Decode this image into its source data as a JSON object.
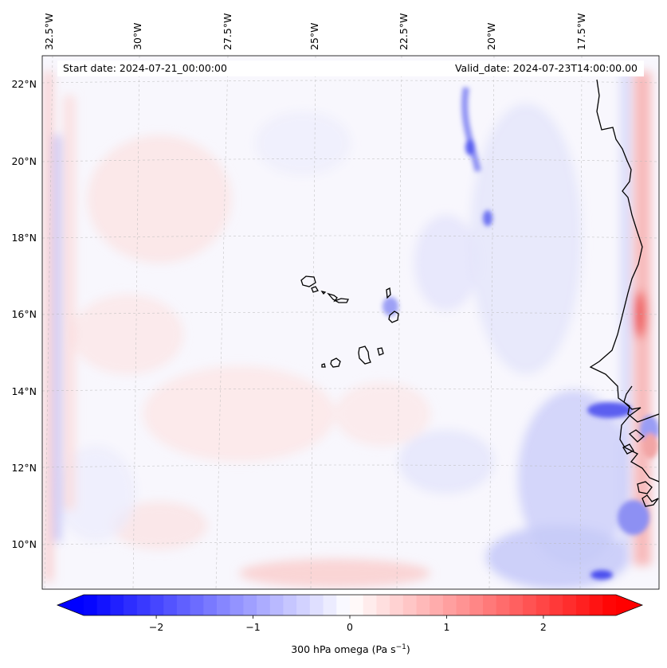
{
  "header": {
    "start_date": "Start date: 2024-07-21_00:00:00",
    "valid_date": "Valid_date: 2024-07-23T14:00:00.00"
  },
  "lon_labels": [
    "32.5°W",
    "30°W",
    "27.5°W",
    "25°W",
    "22.5°W",
    "20°W",
    "17.5°W"
  ],
  "lat_labels": [
    "22°N",
    "20°N",
    "18°N",
    "16°N",
    "14°N",
    "12°N",
    "10°N"
  ],
  "colorbar": {
    "title": "300 hPa omega (Pa s",
    "title_exponent": "−1",
    "title_suffix": ")",
    "ticks": [
      "−2",
      "−1",
      "0",
      "1",
      "2"
    ],
    "min": -2.75,
    "max": 2.75,
    "low_color": "#0000ff",
    "mid_color": "#ffffff",
    "high_color": "#ff0000"
  },
  "chart_data": {
    "type": "heatmap",
    "title": "300 hPa omega (Pa s^-1)",
    "variable": "omega",
    "units": "Pa s^-1",
    "level_hPa": 300,
    "lon_ticks_deg": [
      -32.5,
      -30,
      -27.5,
      -25,
      -22.5,
      -20,
      -17.5
    ],
    "lat_ticks_deg": [
      22,
      20,
      18,
      16,
      14,
      12,
      10
    ],
    "color_range": [
      -2.75,
      2.75
    ],
    "colormap": "bwr",
    "start_date": "2024-07-21_00:00:00",
    "valid_date": "2024-07-23T14:00:00.00"
  }
}
